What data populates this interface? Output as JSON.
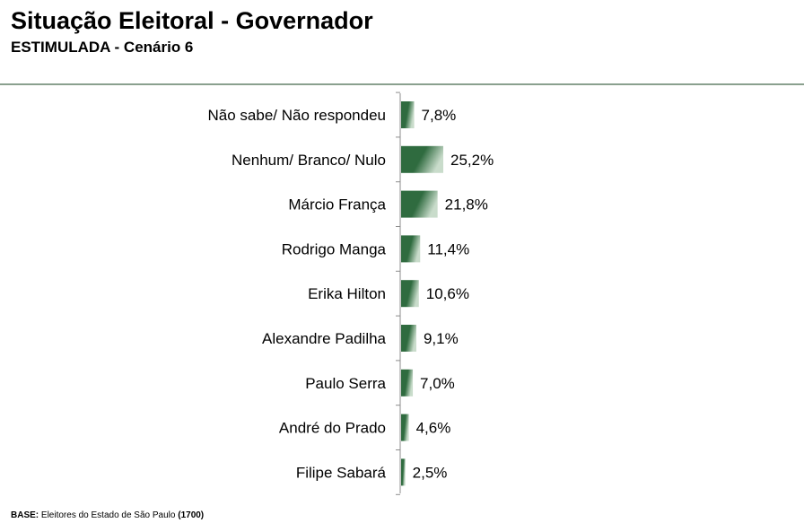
{
  "header": {
    "title": "Situação Eleitoral - Governador",
    "subtitle": "ESTIMULADA - Cenário 6"
  },
  "footer": {
    "base_label": "BASE:",
    "base_text": "Eleitores do Estado de São Paulo",
    "base_count": "(1700)"
  },
  "colors": {
    "bar_dark": "#2f6b3f",
    "bar_light": "#c9dccb",
    "axis": "#8c8c8c"
  },
  "chart_data": {
    "type": "bar",
    "orientation": "horizontal",
    "categories": [
      "Não sabe/ Não respondeu",
      "Nenhum/ Branco/ Nulo",
      "Márcio França",
      "Rodrigo Manga",
      "Erika Hilton",
      "Alexandre Padilha",
      "Paulo Serra",
      "André do Prado",
      "Filipe Sabará"
    ],
    "values": [
      7.8,
      25.2,
      21.8,
      11.4,
      10.6,
      9.1,
      7.0,
      4.6,
      2.5
    ],
    "value_labels": [
      "7,8%",
      "25,2%",
      "21,8%",
      "11,4%",
      "10,6%",
      "9,1%",
      "7,0%",
      "4,6%",
      "2,5%"
    ],
    "unit": "%",
    "xlim": [
      0,
      100
    ],
    "grid": false,
    "legend": "none"
  }
}
